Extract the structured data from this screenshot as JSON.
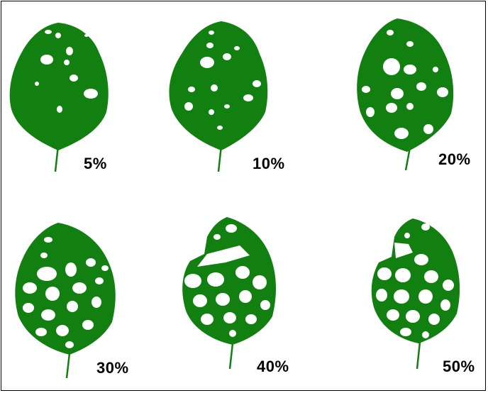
{
  "figure": {
    "leaves": [
      {
        "label": "5%",
        "damage_fraction": 0.05
      },
      {
        "label": "10%",
        "damage_fraction": 0.1
      },
      {
        "label": "20%",
        "damage_fraction": 0.2
      },
      {
        "label": "30%",
        "damage_fraction": 0.3
      },
      {
        "label": "40%",
        "damage_fraction": 0.4
      },
      {
        "label": "50%",
        "damage_fraction": 0.5
      }
    ],
    "leaf_color": "#118011",
    "hole_color": "#ffffff",
    "border_color": "#000000"
  }
}
